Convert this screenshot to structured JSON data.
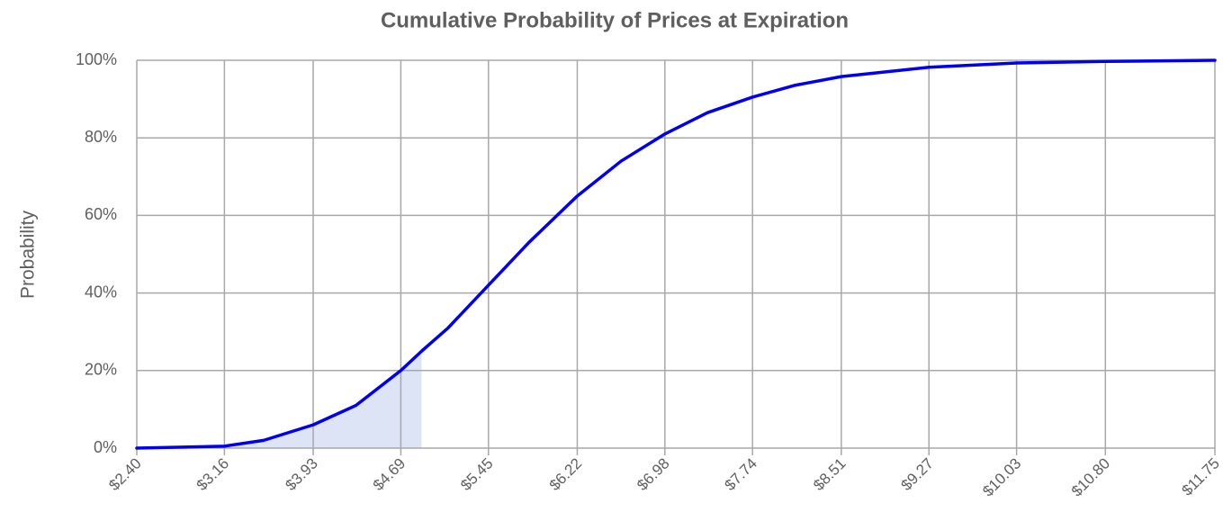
{
  "chart_data": {
    "type": "line",
    "title": "Cumulative Probability of Prices at Expiration",
    "y_label": "Probability",
    "series": [
      {
        "name": "Probability",
        "color": "#0000ee",
        "x": [
          2.4,
          3.16,
          3.5,
          3.93,
          4.3,
          4.69,
          4.87,
          5.1,
          5.45,
          5.8,
          6.22,
          6.6,
          6.98,
          7.35,
          7.74,
          8.1,
          8.51,
          9.27,
          10.03,
          10.8,
          11.75
        ],
        "values": [
          0,
          0.5,
          2,
          6,
          11,
          20,
          25,
          31,
          42,
          53,
          65,
          74,
          81,
          86.5,
          90.5,
          93.5,
          95.8,
          98.2,
          99.3,
          99.7,
          100
        ]
      }
    ],
    "highlight_xmax": 4.87,
    "highlight_color": "#dce4f5",
    "xlim": [
      2.4,
      11.75
    ],
    "xticks": [
      {
        "value": 2.4,
        "label": "$2.40"
      },
      {
        "value": 3.16,
        "label": "$3.16"
      },
      {
        "value": 3.93,
        "label": "$3.93"
      },
      {
        "value": 4.69,
        "label": "$4.69"
      },
      {
        "value": 5.45,
        "label": "$5.45"
      },
      {
        "value": 6.22,
        "label": "$6.22"
      },
      {
        "value": 6.98,
        "label": "$6.98"
      },
      {
        "value": 7.74,
        "label": "$7.74"
      },
      {
        "value": 8.51,
        "label": "$8.51"
      },
      {
        "value": 9.27,
        "label": "$9.27"
      },
      {
        "value": 10.03,
        "label": "$10.03"
      },
      {
        "value": 10.8,
        "label": "$10.80"
      },
      {
        "value": 11.75,
        "label": "$11.75"
      }
    ],
    "ylim": [
      0,
      100
    ],
    "yticks": [
      {
        "value": 0,
        "label": "0%"
      },
      {
        "value": 20,
        "label": "20%"
      },
      {
        "value": 40,
        "label": "40%"
      },
      {
        "value": 60,
        "label": "60%"
      },
      {
        "value": 80,
        "label": "80%"
      },
      {
        "value": 100,
        "label": "100%"
      }
    ],
    "grid": true
  }
}
